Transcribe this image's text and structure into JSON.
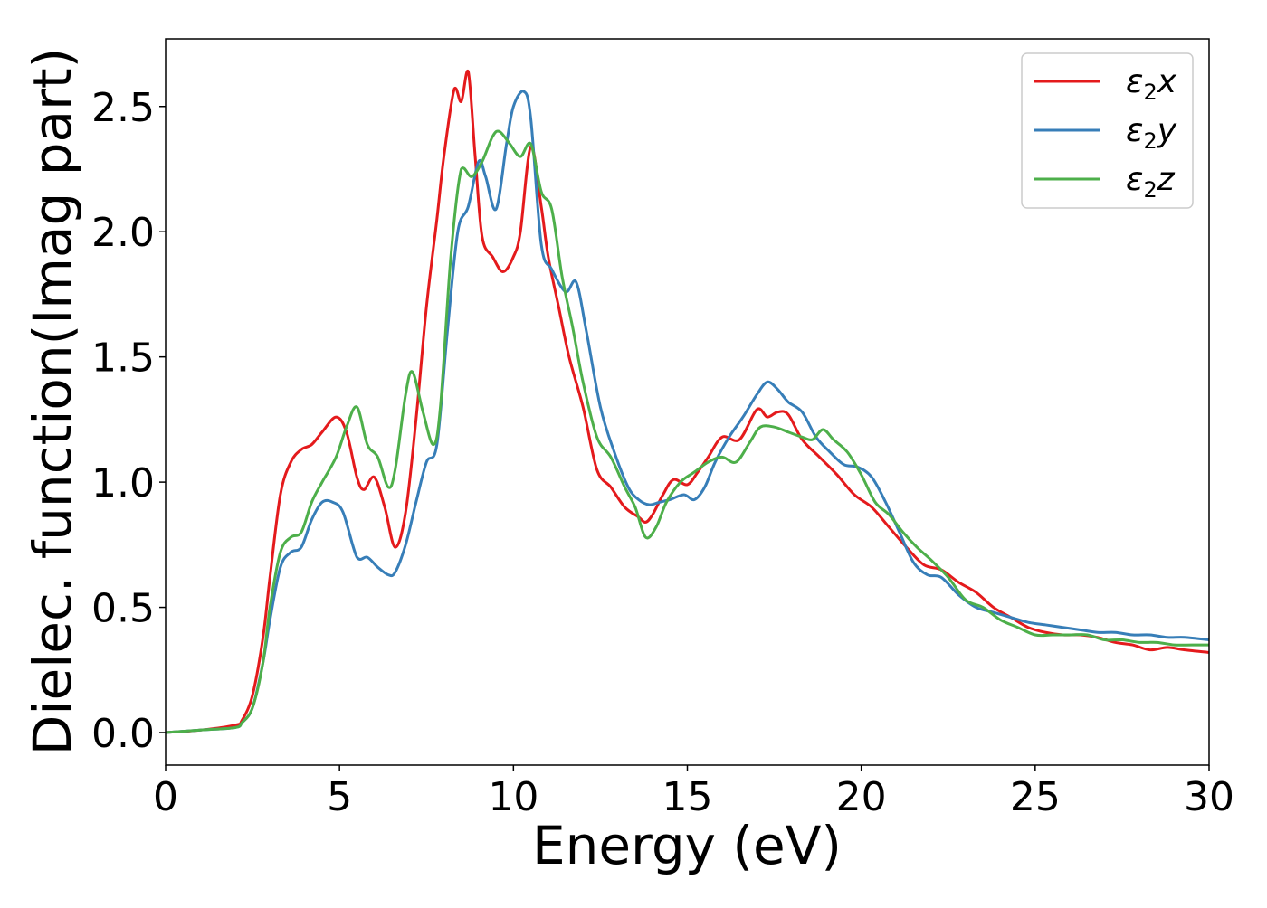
{
  "chart_data": {
    "type": "line",
    "title": "",
    "xlabel": "Energy (eV)",
    "ylabel": "Dielec. function(Imag part)",
    "xlim": [
      0,
      30
    ],
    "ylim": [
      -0.13,
      2.77
    ],
    "xticks": [
      0,
      5,
      10,
      15,
      20,
      25,
      30
    ],
    "xtick_labels": [
      "0",
      "5",
      "10",
      "15",
      "20",
      "25",
      "30"
    ],
    "yticks": [
      0.0,
      0.5,
      1.0,
      1.5,
      2.0,
      2.5
    ],
    "ytick_labels": [
      "0.0",
      "0.5",
      "1.0",
      "1.5",
      "2.0",
      "2.5"
    ],
    "grid": false,
    "legend_position": "top-right",
    "series": [
      {
        "name": "ε₂x",
        "legend_base": "ε",
        "legend_sub": "2",
        "legend_suffix": "x",
        "color": "#e41a1c",
        "x": [
          0,
          1,
          2,
          2.2,
          2.5,
          2.8,
          3.0,
          3.3,
          3.6,
          3.9,
          4.2,
          4.5,
          4.9,
          5.2,
          5.5,
          5.7,
          6.0,
          6.3,
          6.6,
          6.9,
          7.2,
          7.5,
          7.8,
          8.0,
          8.3,
          8.5,
          8.7,
          8.9,
          9.1,
          9.4,
          9.7,
          10.0,
          10.2,
          10.5,
          10.8,
          11.0,
          11.3,
          11.6,
          12.0,
          12.4,
          12.8,
          13.2,
          13.6,
          13.8,
          14.0,
          14.3,
          14.6,
          15.0,
          15.3,
          15.6,
          16.0,
          16.5,
          17.0,
          17.3,
          17.6,
          17.9,
          18.3,
          18.8,
          19.3,
          19.8,
          20.3,
          20.8,
          21.3,
          21.8,
          22.3,
          22.8,
          23.3,
          23.8,
          24.3,
          24.8,
          25.3,
          25.8,
          26.3,
          26.8,
          27.3,
          27.8,
          28.3,
          28.8,
          29.3,
          30
        ],
        "y": [
          0.0,
          0.01,
          0.03,
          0.05,
          0.15,
          0.38,
          0.62,
          0.95,
          1.08,
          1.13,
          1.15,
          1.2,
          1.26,
          1.2,
          1.02,
          0.97,
          1.02,
          0.9,
          0.74,
          0.88,
          1.25,
          1.7,
          2.05,
          2.3,
          2.57,
          2.52,
          2.64,
          2.3,
          1.98,
          1.9,
          1.84,
          1.9,
          2.0,
          2.34,
          2.1,
          1.9,
          1.7,
          1.5,
          1.3,
          1.05,
          0.98,
          0.9,
          0.86,
          0.84,
          0.87,
          0.95,
          1.01,
          0.99,
          1.04,
          1.1,
          1.18,
          1.17,
          1.29,
          1.26,
          1.28,
          1.27,
          1.17,
          1.1,
          1.03,
          0.95,
          0.9,
          0.82,
          0.74,
          0.67,
          0.65,
          0.6,
          0.56,
          0.5,
          0.46,
          0.42,
          0.4,
          0.39,
          0.39,
          0.38,
          0.36,
          0.35,
          0.33,
          0.34,
          0.33,
          0.32
        ]
      },
      {
        "name": "ε₂y",
        "legend_base": "ε",
        "legend_sub": "2",
        "legend_suffix": "y",
        "color": "#377eb8",
        "x": [
          0,
          1,
          2,
          2.2,
          2.5,
          2.8,
          3.0,
          3.3,
          3.6,
          3.9,
          4.2,
          4.5,
          4.8,
          5.1,
          5.5,
          5.8,
          6.1,
          6.4,
          6.6,
          6.9,
          7.2,
          7.5,
          7.8,
          8.1,
          8.4,
          8.7,
          9.0,
          9.2,
          9.5,
          9.8,
          10.0,
          10.3,
          10.5,
          10.8,
          11.1,
          11.5,
          11.8,
          12.1,
          12.5,
          12.9,
          13.3,
          13.6,
          13.9,
          14.2,
          14.5,
          14.9,
          15.2,
          15.5,
          15.8,
          16.2,
          16.6,
          17.0,
          17.3,
          17.6,
          17.9,
          18.3,
          18.7,
          19.1,
          19.5,
          19.9,
          20.3,
          20.7,
          21.1,
          21.5,
          21.9,
          22.3,
          22.8,
          23.3,
          23.8,
          24.3,
          24.8,
          25.3,
          25.8,
          26.3,
          26.8,
          27.3,
          27.8,
          28.3,
          28.8,
          29.3,
          30
        ],
        "y": [
          0.0,
          0.01,
          0.02,
          0.04,
          0.1,
          0.28,
          0.45,
          0.66,
          0.72,
          0.74,
          0.85,
          0.92,
          0.92,
          0.88,
          0.7,
          0.7,
          0.66,
          0.63,
          0.64,
          0.75,
          0.92,
          1.08,
          1.15,
          1.6,
          2.0,
          2.1,
          2.28,
          2.22,
          2.09,
          2.35,
          2.5,
          2.56,
          2.45,
          1.95,
          1.85,
          1.76,
          1.8,
          1.6,
          1.3,
          1.12,
          0.98,
          0.93,
          0.91,
          0.92,
          0.93,
          0.95,
          0.93,
          0.98,
          1.08,
          1.18,
          1.26,
          1.35,
          1.4,
          1.37,
          1.32,
          1.28,
          1.18,
          1.12,
          1.07,
          1.06,
          1.02,
          0.92,
          0.8,
          0.68,
          0.63,
          0.62,
          0.55,
          0.5,
          0.48,
          0.46,
          0.44,
          0.43,
          0.42,
          0.41,
          0.4,
          0.4,
          0.39,
          0.39,
          0.38,
          0.38,
          0.37
        ]
      },
      {
        "name": "ε₂z",
        "legend_base": "ε",
        "legend_sub": "2",
        "legend_suffix": "z",
        "color": "#4daf4a",
        "x": [
          0,
          1,
          2,
          2.2,
          2.5,
          2.8,
          3.0,
          3.3,
          3.6,
          3.9,
          4.2,
          4.5,
          4.9,
          5.2,
          5.5,
          5.8,
          6.1,
          6.4,
          6.6,
          6.9,
          7.1,
          7.4,
          7.7,
          7.9,
          8.2,
          8.5,
          8.8,
          9.1,
          9.4,
          9.6,
          9.9,
          10.2,
          10.5,
          10.8,
          11.1,
          11.4,
          11.7,
          12.0,
          12.4,
          12.8,
          13.2,
          13.5,
          13.8,
          14.1,
          14.4,
          14.8,
          15.2,
          15.6,
          16.0,
          16.4,
          16.8,
          17.1,
          17.5,
          17.9,
          18.3,
          18.6,
          18.9,
          19.2,
          19.6,
          20.0,
          20.4,
          20.8,
          21.2,
          21.6,
          22.0,
          22.5,
          23.0,
          23.5,
          24.0,
          24.5,
          25.0,
          25.5,
          26.0,
          26.5,
          27.0,
          27.5,
          28.0,
          28.5,
          29.0,
          29.5,
          30
        ],
        "y": [
          0.0,
          0.01,
          0.02,
          0.04,
          0.1,
          0.28,
          0.5,
          0.72,
          0.78,
          0.8,
          0.92,
          1.0,
          1.1,
          1.22,
          1.3,
          1.15,
          1.1,
          0.98,
          1.05,
          1.35,
          1.44,
          1.28,
          1.15,
          1.3,
          1.9,
          2.25,
          2.22,
          2.28,
          2.38,
          2.4,
          2.35,
          2.3,
          2.35,
          2.16,
          2.09,
          1.82,
          1.62,
          1.4,
          1.18,
          1.1,
          0.98,
          0.9,
          0.78,
          0.82,
          0.92,
          1.0,
          1.04,
          1.08,
          1.1,
          1.08,
          1.16,
          1.22,
          1.22,
          1.2,
          1.18,
          1.17,
          1.21,
          1.17,
          1.12,
          1.03,
          0.92,
          0.87,
          0.8,
          0.74,
          0.69,
          0.62,
          0.53,
          0.5,
          0.45,
          0.42,
          0.39,
          0.39,
          0.39,
          0.39,
          0.37,
          0.37,
          0.36,
          0.36,
          0.35,
          0.35,
          0.35
        ]
      }
    ]
  }
}
